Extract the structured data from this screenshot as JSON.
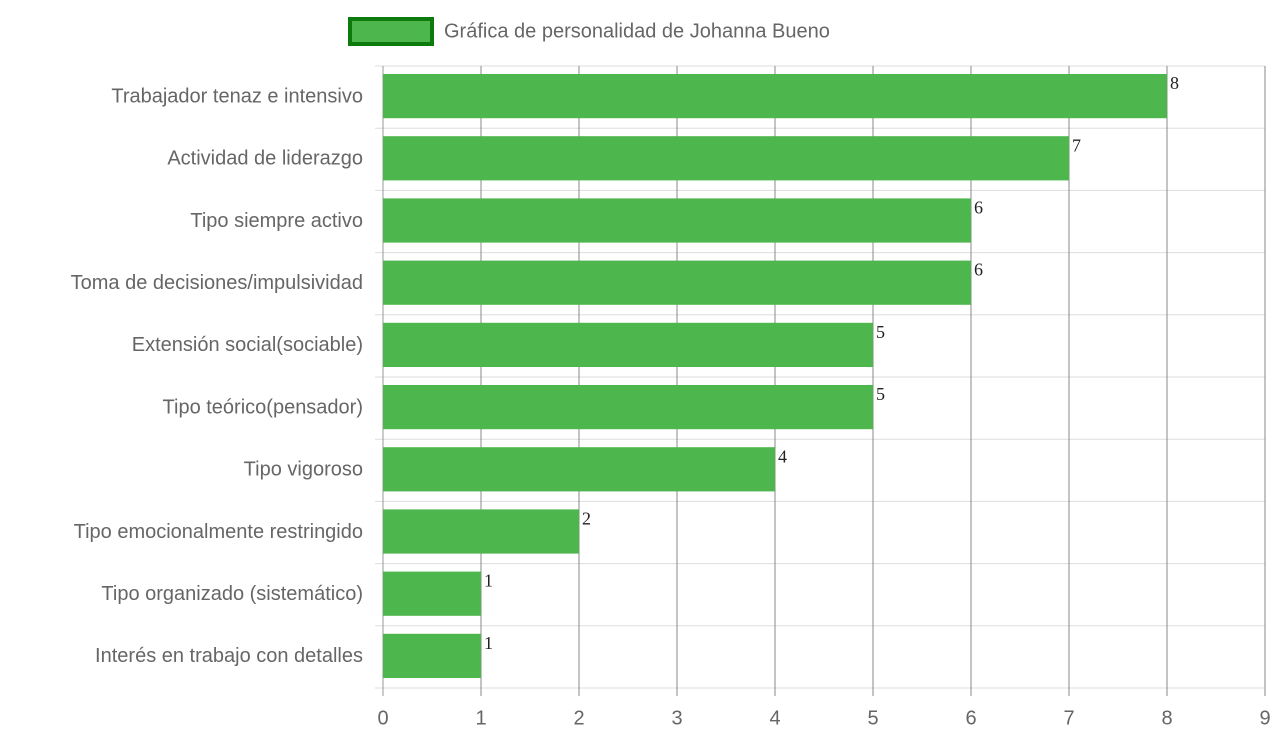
{
  "chart_data": {
    "type": "bar",
    "orientation": "horizontal",
    "categories": [
      "Trabajador tenaz e intensivo",
      "Actividad de liderazgo",
      "Tipo siempre activo",
      "Toma de decisiones/impulsividad",
      "Extensión social(sociable)",
      "Tipo teórico(pensador)",
      "Tipo vigoroso",
      "Tipo emocionalmente restringido",
      "Tipo organizado (sistemático)",
      "Interés en trabajo con detalles"
    ],
    "series": [
      {
        "name": "Gráfica de personalidad de Johanna Bueno",
        "color": "#4db64d",
        "edgecolor": "#0d7a0d",
        "values": [
          8,
          7,
          6,
          6,
          5,
          5,
          4,
          2,
          1,
          1
        ]
      }
    ],
    "xlim": [
      0,
      9
    ],
    "xticks": [
      0,
      1,
      2,
      3,
      4,
      5,
      6,
      7,
      8,
      9
    ],
    "grid": true,
    "legend": "top"
  }
}
